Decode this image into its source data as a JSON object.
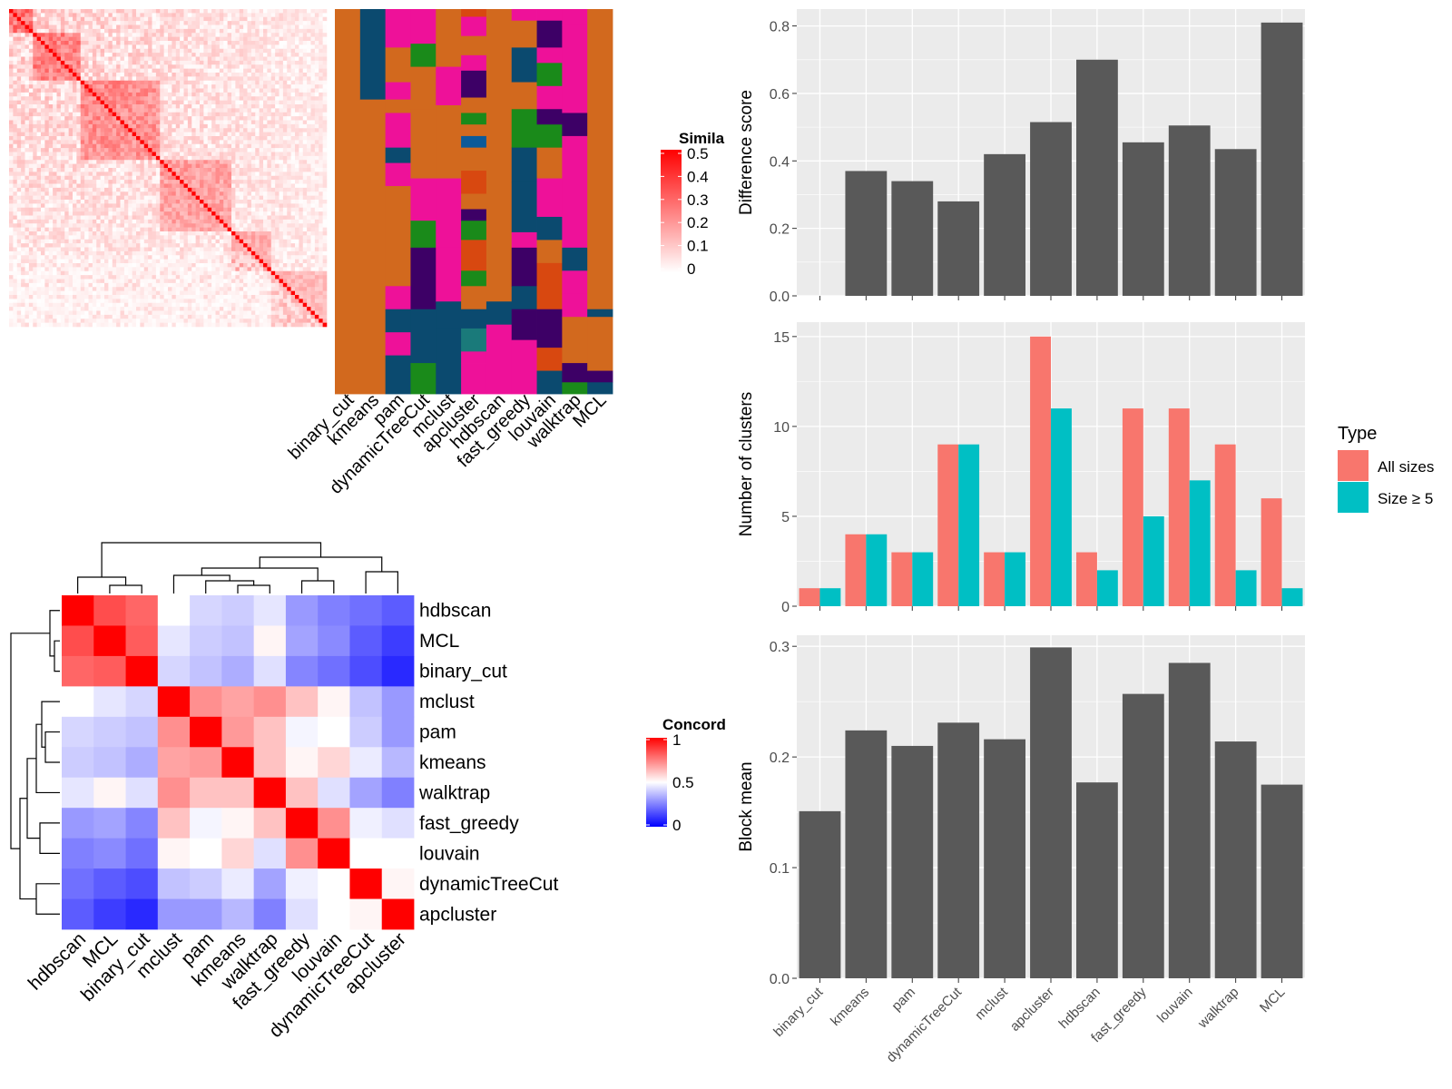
{
  "colors": {
    "panel_bg": "#ebebeb",
    "grid": "#ffffff",
    "bar": "#595959",
    "all_sizes": "#f8766d",
    "size_ge_5": "#00bfc4",
    "heat_high": "#ff0000",
    "heat_mid": "#ffffff",
    "heat_low": "#0000ff",
    "cluster_palette": [
      "#d2691e",
      "#0b4a6f",
      "#ee1199",
      "#1a8a1a",
      "#3d0066",
      "#d84810",
      "#1a7a7a",
      "#0b5a9a"
    ]
  },
  "chart_data": [
    {
      "id": "similarity-heatmap",
      "type": "heatmap",
      "title": "",
      "legend_title": "Simila",
      "legend_ticks": [
        "0.5",
        "0.4",
        "0.3",
        "0.2",
        "0.1",
        "0"
      ],
      "column_labels": [
        "binary_cut",
        "kmeans",
        "pam",
        "dynamicTreeCut",
        "mclust",
        "apcluster",
        "hdbscan",
        "fast_greedy",
        "louvain",
        "walktrap",
        "MCL"
      ],
      "value_range": [
        0,
        0.5
      ]
    },
    {
      "id": "difference-score",
      "type": "bar",
      "title": "",
      "ylabel": "Difference score",
      "xlabel": "",
      "categories": [
        "binary_cut",
        "kmeans",
        "pam",
        "dynamicTreeCut",
        "mclust",
        "apcluster",
        "hdbscan",
        "fast_greedy",
        "louvain",
        "walktrap",
        "MCL"
      ],
      "values": [
        0,
        0.37,
        0.34,
        0.28,
        0.42,
        0.515,
        0.7,
        0.455,
        0.505,
        0.435,
        0.81
      ],
      "ylim": [
        0,
        0.85
      ],
      "yticks": [
        0.0,
        0.2,
        0.4,
        0.6,
        0.8
      ],
      "ytick_labels": [
        "0.0",
        "0.2",
        "0.4",
        "0.6",
        "0.8"
      ]
    },
    {
      "id": "number-of-clusters",
      "type": "bar",
      "title": "",
      "ylabel": "Number of clusters",
      "xlabel": "",
      "categories": [
        "binary_cut",
        "kmeans",
        "pam",
        "dynamicTreeCut",
        "mclust",
        "apcluster",
        "hdbscan",
        "fast_greedy",
        "louvain",
        "walktrap",
        "MCL"
      ],
      "series": [
        {
          "name": "All sizes",
          "values": [
            1,
            4,
            3,
            9,
            3,
            15,
            3,
            11,
            11,
            9,
            6
          ]
        },
        {
          "name": "Size ≥ 5",
          "values": [
            1,
            4,
            3,
            9,
            3,
            11,
            2,
            5,
            7,
            2,
            1
          ]
        }
      ],
      "legend_title": "Type",
      "legend_position": "right",
      "ylim": [
        0,
        15.8
      ],
      "yticks": [
        0,
        5,
        10,
        15
      ],
      "ytick_labels": [
        "0",
        "5",
        "10",
        "15"
      ]
    },
    {
      "id": "block-mean",
      "type": "bar",
      "title": "",
      "ylabel": "Block mean",
      "xlabel": "",
      "categories": [
        "binary_cut",
        "kmeans",
        "pam",
        "dynamicTreeCut",
        "mclust",
        "apcluster",
        "hdbscan",
        "fast_greedy",
        "louvain",
        "walktrap",
        "MCL"
      ],
      "values": [
        0.151,
        0.224,
        0.21,
        0.231,
        0.216,
        0.299,
        0.177,
        0.257,
        0.285,
        0.214,
        0.175
      ],
      "ylim": [
        0,
        0.31
      ],
      "yticks": [
        0.0,
        0.1,
        0.2,
        0.3
      ],
      "ytick_labels": [
        "0.0",
        "0.1",
        "0.2",
        "0.3"
      ]
    },
    {
      "id": "concordance-heatmap",
      "type": "heatmap",
      "title": "",
      "legend_title": "Concord",
      "legend_ticks": [
        "1",
        "0.5",
        "0"
      ],
      "row_labels": [
        "hdbscan",
        "MCL",
        "binary_cut",
        "mclust",
        "pam",
        "kmeans",
        "walktrap",
        "fast_greedy",
        "louvain",
        "dynamicTreeCut",
        "apcluster"
      ],
      "column_labels": [
        "hdbscan",
        "MCL",
        "binary_cut",
        "mclust",
        "pam",
        "kmeans",
        "walktrap",
        "fast_greedy",
        "louvain",
        "dynamicTreeCut",
        "apcluster"
      ],
      "value_range": [
        0,
        1
      ],
      "values": [
        [
          1.0,
          0.85,
          0.8,
          0.5,
          0.42,
          0.4,
          0.45,
          0.3,
          0.25,
          0.22,
          0.18
        ],
        [
          0.85,
          1.0,
          0.82,
          0.45,
          0.4,
          0.38,
          0.52,
          0.32,
          0.27,
          0.18,
          0.12
        ],
        [
          0.8,
          0.82,
          1.0,
          0.42,
          0.38,
          0.34,
          0.44,
          0.26,
          0.22,
          0.15,
          0.08
        ],
        [
          0.5,
          0.45,
          0.42,
          1.0,
          0.72,
          0.68,
          0.72,
          0.62,
          0.52,
          0.38,
          0.3
        ],
        [
          0.42,
          0.4,
          0.38,
          0.72,
          1.0,
          0.7,
          0.62,
          0.48,
          0.5,
          0.4,
          0.3
        ],
        [
          0.4,
          0.38,
          0.34,
          0.68,
          0.7,
          1.0,
          0.62,
          0.52,
          0.58,
          0.46,
          0.36
        ],
        [
          0.45,
          0.52,
          0.44,
          0.72,
          0.62,
          0.62,
          1.0,
          0.62,
          0.44,
          0.32,
          0.25
        ],
        [
          0.3,
          0.32,
          0.26,
          0.62,
          0.48,
          0.52,
          0.62,
          1.0,
          0.72,
          0.47,
          0.44
        ],
        [
          0.25,
          0.27,
          0.22,
          0.52,
          0.5,
          0.58,
          0.44,
          0.72,
          1.0,
          0.5,
          0.5
        ],
        [
          0.22,
          0.18,
          0.15,
          0.38,
          0.4,
          0.46,
          0.32,
          0.47,
          0.5,
          1.0,
          0.52
        ],
        [
          0.18,
          0.12,
          0.08,
          0.3,
          0.3,
          0.36,
          0.25,
          0.44,
          0.5,
          0.52,
          1.0
        ]
      ]
    }
  ]
}
